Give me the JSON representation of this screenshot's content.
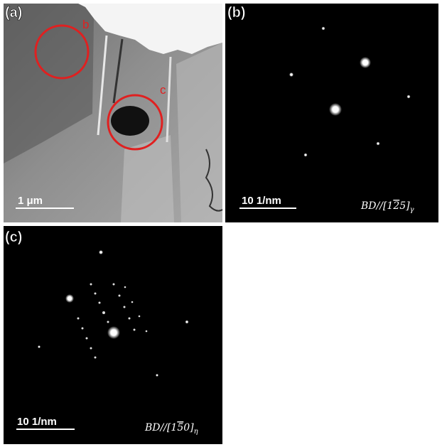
{
  "panels": [
    {
      "label": "(a)",
      "scale_bar": "1 μm",
      "markers": [
        "b",
        "c"
      ]
    },
    {
      "label": "(b)",
      "scale_bar": "10 1/nm",
      "zone_axis": {
        "prefix": "BD//[1",
        "bar": "2",
        "suffix": "5]",
        "subscript": "γ"
      }
    },
    {
      "label": "(c)",
      "scale_bar": "10 1/nm",
      "zone_axis": {
        "prefix": "BD//[1",
        "bar": "5",
        "suffix": "0]",
        "subscript": "η"
      }
    }
  ]
}
